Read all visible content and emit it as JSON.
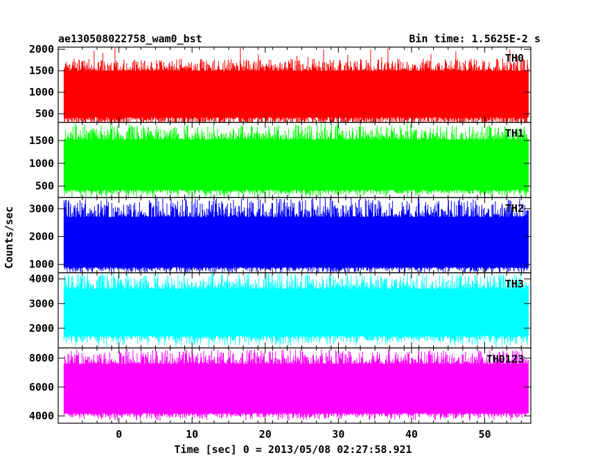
{
  "chart_data": {
    "type": "line",
    "title": "ae130508022758_wam0_bst",
    "subtitle": "Bin time: 1.5625E-2 s",
    "xlabel": "Time [sec] 0 = 2013/05/08 02:27:58.921",
    "ylabel": "Counts/sec",
    "xlim": [
      -8.3,
      56.3
    ],
    "xticks": [
      0,
      10,
      20,
      30,
      40,
      50
    ],
    "grid": false,
    "panels": [
      {
        "name": "TH0",
        "color": "#ff0000",
        "ylim": [
          300,
          2050
        ],
        "yticks": [
          500,
          1000,
          1500,
          2000
        ],
        "band": [
          80,
          1780
        ],
        "core": [
          420,
          1500
        ],
        "spike": [
          1500,
          2050
        ],
        "x_range": [
          -7.5,
          56
        ]
      },
      {
        "name": "TH1",
        "color": "#00ff00",
        "ylim": [
          250,
          1900
        ],
        "yticks": [
          500,
          1000,
          1500
        ],
        "band": [
          230,
          1850
        ],
        "core": [
          420,
          1520
        ],
        "spike": [
          1500,
          1900
        ],
        "x_range": [
          -7.5,
          56
        ]
      },
      {
        "name": "TH2",
        "color": "#0000ff",
        "ylim": [
          700,
          3400
        ],
        "yticks": [
          1000,
          2000,
          3000
        ],
        "band": [
          620,
          3380
        ],
        "core": [
          900,
          2700
        ],
        "spike": [
          2600,
          3350
        ],
        "x_range": [
          -7.5,
          56
        ]
      },
      {
        "name": "TH3",
        "color": "#00ffff",
        "ylim": [
          1200,
          4250
        ],
        "yticks": [
          2000,
          3000,
          4000
        ],
        "band": [
          1200,
          4250
        ],
        "core": [
          1700,
          3600
        ],
        "spike": [
          3400,
          4200
        ],
        "x_range": [
          -7.5,
          56
        ]
      },
      {
        "name": "TH0123",
        "color": "#ff00ff",
        "ylim": [
          3500,
          8700
        ],
        "yticks": [
          4000,
          6000,
          8000
        ],
        "band": [
          3600,
          8600
        ],
        "core": [
          4200,
          7600
        ],
        "spike": [
          7400,
          8600
        ],
        "x_range": [
          -7.5,
          56
        ]
      }
    ]
  }
}
